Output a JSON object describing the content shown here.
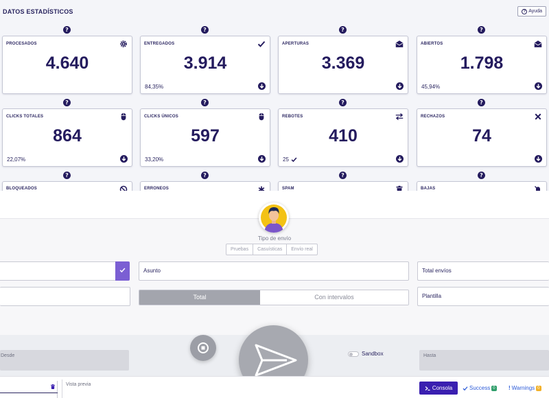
{
  "stats": {
    "title": "DATOS ESTADÍSTICOS",
    "help_label": "Ayuda",
    "row1": [
      {
        "label": "PROCESADOS",
        "value": "4.640",
        "pct": "",
        "icon": "gear-icon"
      },
      {
        "label": "ENTREGADOS",
        "value": "3.914",
        "pct": "84,35%",
        "icon": "check-icon"
      },
      {
        "label": "APERTURAS",
        "value": "3.369",
        "pct": "",
        "icon": "envelope-open-icon"
      },
      {
        "label": "ABIERTOS",
        "value": "1.798",
        "pct": "45,94%",
        "icon": "envelope-open-icon"
      }
    ],
    "row2": [
      {
        "label": "CLICKS TOTALES",
        "value": "864",
        "pct": "22,07%",
        "icon": "mouse-icon"
      },
      {
        "label": "CLICKS ÚNICOS",
        "value": "597",
        "pct": "33,20%",
        "icon": "mouse-icon"
      },
      {
        "label": "REBOTES",
        "value": "410",
        "pct": "25",
        "icon": "exchange-icon"
      },
      {
        "label": "RECHAZOS",
        "value": "74",
        "pct": "",
        "icon": "close-icon"
      }
    ],
    "row3": [
      {
        "label": "BLOQUEADOS",
        "icon": "ban-icon"
      },
      {
        "label": "ERRONEOS",
        "icon": "asterisk-icon"
      },
      {
        "label": "SPAM",
        "icon": "trash-icon"
      },
      {
        "label": "BAJAS",
        "icon": "bell-slash-icon"
      }
    ]
  },
  "form": {
    "tipo_label": "Tipo de envío",
    "tipo_options": [
      "Pruebas",
      "Casuísticas",
      "Envío real"
    ],
    "asunto_label": "Asunto",
    "total_envios_label": "Total envíos",
    "plantilla_label": "Plantilla",
    "toggle_total": "Total",
    "toggle_intervals": "Con intervalos",
    "desde_label": "Desde",
    "hasta_label": "Hasta",
    "sandbox_label": "Sandbox"
  },
  "footer": {
    "preview_label": "Vista previa",
    "console_label": "Consola",
    "success_label": "Success",
    "success_count": "0",
    "warnings_label": "Warnings",
    "warnings_count": "0"
  },
  "colors": {
    "accent": "#241b5e",
    "primary_button": "#3a1fb0",
    "check_button": "#7b5fd3",
    "success_badge": "#2f9e6a",
    "warning_badge": "#f2b12a"
  }
}
